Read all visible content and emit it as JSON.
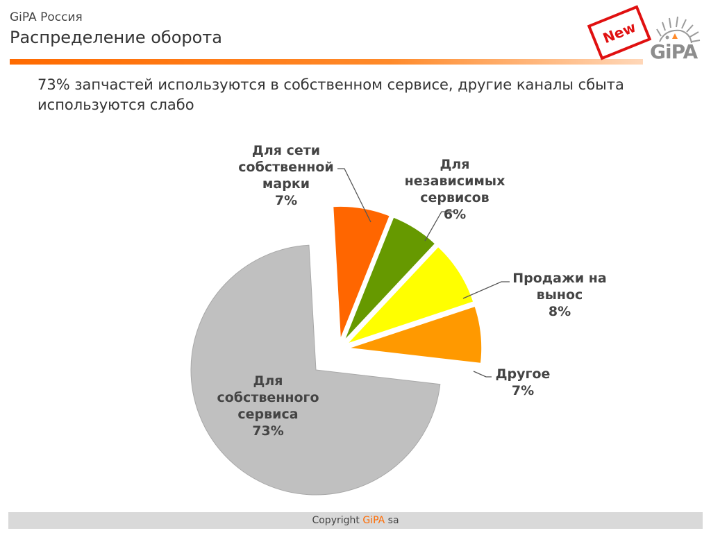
{
  "header": {
    "brand": "GiPA Россия",
    "title": "Распределение оборота",
    "subtitle": "73% запчастей  используются в собственном сервисе, другие каналы сбыта используются слабо",
    "stamp": "New",
    "logo_text": "GiPA"
  },
  "chart_data": {
    "type": "pie",
    "title": "",
    "slices": [
      {
        "label": [
          "Для",
          "собственного",
          "сервиса",
          "73%"
        ],
        "value": 73,
        "color": "#c0c0c0"
      },
      {
        "label": [
          "Для сети",
          "собственной",
          "марки",
          "7%"
        ],
        "value": 7,
        "color": "#ff6600"
      },
      {
        "label": [
          "Для",
          "независимых",
          "сервисов",
          "6%"
        ],
        "value": 6,
        "color": "#669900"
      },
      {
        "label": [
          "Продажи на",
          "вынос",
          "8%"
        ],
        "value": 8,
        "color": "#ffff00"
      },
      {
        "label": [
          "Другое",
          "7%"
        ],
        "value": 7,
        "color": "#ff9900"
      }
    ]
  },
  "footer": {
    "copyright": "Copyright ",
    "brand": "GiPA",
    "suffix": " sa"
  }
}
